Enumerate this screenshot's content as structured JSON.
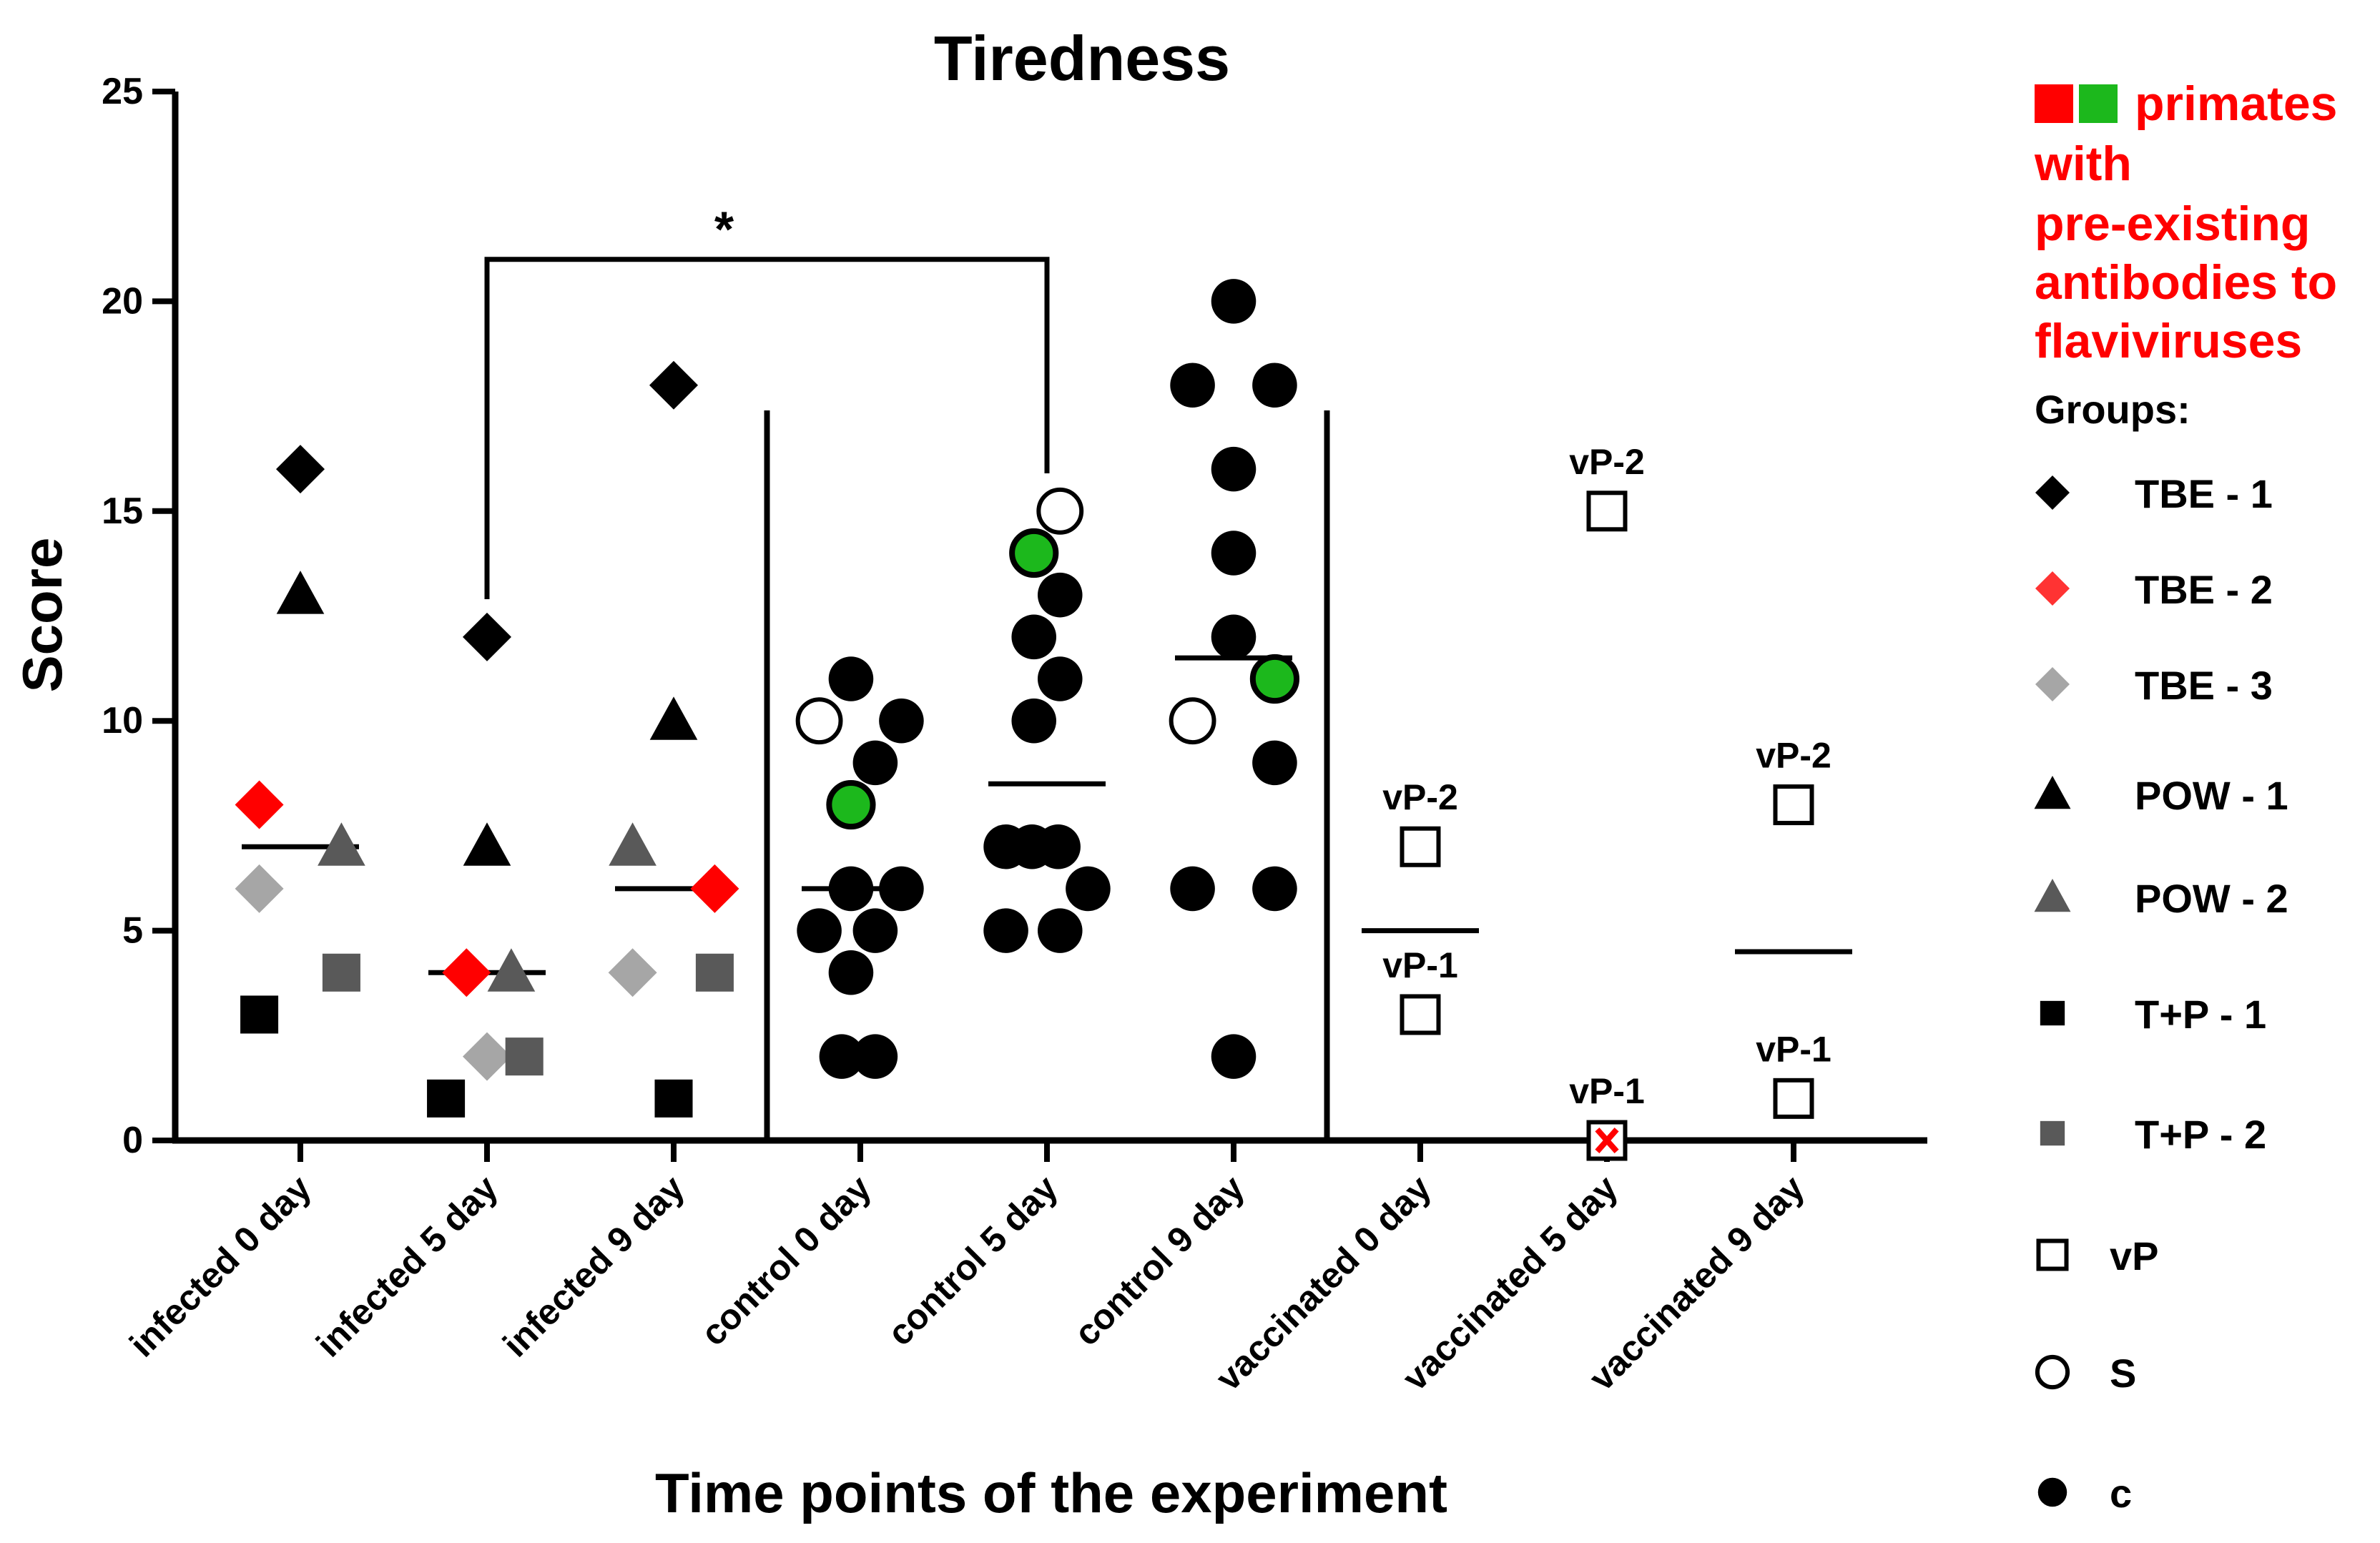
{
  "chart_data": {
    "type": "scatter",
    "title": "Tiredness",
    "ylabel": "Score",
    "xlabel": "Time points of the experiment",
    "ylim": [
      0,
      25
    ],
    "yticks": [
      0,
      5,
      10,
      15,
      20,
      25
    ],
    "categories": [
      "infected 0 day",
      "infected 5 day",
      "infected 9 day",
      "control 0 day",
      "control 5 day",
      "control 9 day",
      "vaccinated 0 day",
      "vaccinated 5 day",
      "vaccinated 9 day"
    ],
    "means": [
      {
        "cat": 0,
        "value": 7
      },
      {
        "cat": 1,
        "value": 4
      },
      {
        "cat": 2,
        "value": 6
      },
      {
        "cat": 3,
        "value": 6
      },
      {
        "cat": 4,
        "value": 8.5
      },
      {
        "cat": 5,
        "value": 11.5
      },
      {
        "cat": 6,
        "value": 5
      },
      {
        "cat": 8,
        "value": 4.5
      }
    ],
    "points": [
      {
        "cat": 0,
        "offset": 0,
        "value": 16,
        "shape": "diamond",
        "color": "#000000"
      },
      {
        "cat": 0,
        "offset": 0,
        "value": 13,
        "shape": "triangle",
        "color": "#000000"
      },
      {
        "cat": 0,
        "offset": -0.22,
        "value": 8,
        "shape": "diamond",
        "color": "#ff0000"
      },
      {
        "cat": 0,
        "offset": 0.22,
        "value": 7,
        "shape": "triangle",
        "color": "#595959"
      },
      {
        "cat": 0,
        "offset": -0.22,
        "value": 6,
        "shape": "diamond",
        "color": "#a6a6a6"
      },
      {
        "cat": 0,
        "offset": 0.22,
        "value": 4,
        "shape": "square",
        "color": "#595959"
      },
      {
        "cat": 0,
        "offset": -0.22,
        "value": 3,
        "shape": "square",
        "color": "#000000"
      },
      {
        "cat": 1,
        "offset": 0,
        "value": 12,
        "shape": "diamond",
        "color": "#000000"
      },
      {
        "cat": 1,
        "offset": 0,
        "value": 7,
        "shape": "triangle",
        "color": "#000000"
      },
      {
        "cat": 1,
        "offset": -0.11,
        "value": 4,
        "shape": "diamond",
        "color": "#ff0000"
      },
      {
        "cat": 1,
        "offset": 0.13,
        "value": 4,
        "shape": "triangle",
        "color": "#595959"
      },
      {
        "cat": 1,
        "offset": 0,
        "value": 2,
        "shape": "diamond",
        "color": "#a6a6a6"
      },
      {
        "cat": 1,
        "offset": 0.2,
        "value": 2,
        "shape": "square",
        "color": "#595959"
      },
      {
        "cat": 1,
        "offset": -0.22,
        "value": 1,
        "shape": "square",
        "color": "#000000"
      },
      {
        "cat": 2,
        "offset": 0,
        "value": 18,
        "shape": "diamond",
        "color": "#000000"
      },
      {
        "cat": 2,
        "offset": 0,
        "value": 10,
        "shape": "triangle",
        "color": "#000000"
      },
      {
        "cat": 2,
        "offset": -0.22,
        "value": 7,
        "shape": "triangle",
        "color": "#595959"
      },
      {
        "cat": 2,
        "offset": 0.22,
        "value": 6,
        "shape": "diamond",
        "color": "#ff0000"
      },
      {
        "cat": 2,
        "offset": -0.22,
        "value": 4,
        "shape": "diamond",
        "color": "#a6a6a6"
      },
      {
        "cat": 2,
        "offset": 0.22,
        "value": 4,
        "shape": "square",
        "color": "#595959"
      },
      {
        "cat": 2,
        "offset": 0,
        "value": 1,
        "shape": "square",
        "color": "#000000"
      },
      {
        "cat": 3,
        "offset": -0.05,
        "value": 11,
        "shape": "circle",
        "color": "#000000"
      },
      {
        "cat": 3,
        "offset": -0.22,
        "value": 10,
        "shape": "open-circle",
        "color": "#000000"
      },
      {
        "cat": 3,
        "offset": 0.22,
        "value": 10,
        "shape": "circle",
        "color": "#000000"
      },
      {
        "cat": 3,
        "offset": 0.08,
        "value": 9,
        "shape": "circle",
        "color": "#000000"
      },
      {
        "cat": 3,
        "offset": -0.05,
        "value": 8,
        "shape": "circle",
        "color": "#1cb81c"
      },
      {
        "cat": 3,
        "offset": -0.05,
        "value": 6,
        "shape": "circle",
        "color": "#000000"
      },
      {
        "cat": 3,
        "offset": 0.22,
        "value": 6,
        "shape": "circle",
        "color": "#000000"
      },
      {
        "cat": 3,
        "offset": -0.22,
        "value": 5,
        "shape": "circle",
        "color": "#000000"
      },
      {
        "cat": 3,
        "offset": 0.08,
        "value": 5,
        "shape": "circle",
        "color": "#000000"
      },
      {
        "cat": 3,
        "offset": -0.05,
        "value": 4,
        "shape": "circle",
        "color": "#000000"
      },
      {
        "cat": 3,
        "offset": -0.1,
        "value": 2,
        "shape": "circle",
        "color": "#000000"
      },
      {
        "cat": 3,
        "offset": 0.08,
        "value": 2,
        "shape": "circle",
        "color": "#000000"
      },
      {
        "cat": 4,
        "offset": 0.07,
        "value": 15,
        "shape": "open-circle",
        "color": "#000000"
      },
      {
        "cat": 4,
        "offset": -0.07,
        "value": 14,
        "shape": "circle",
        "color": "#1cb81c"
      },
      {
        "cat": 4,
        "offset": 0.07,
        "value": 13,
        "shape": "circle",
        "color": "#000000"
      },
      {
        "cat": 4,
        "offset": -0.07,
        "value": 12,
        "shape": "circle",
        "color": "#000000"
      },
      {
        "cat": 4,
        "offset": 0.07,
        "value": 11,
        "shape": "circle",
        "color": "#000000"
      },
      {
        "cat": 4,
        "offset": -0.07,
        "value": 10,
        "shape": "circle",
        "color": "#000000"
      },
      {
        "cat": 4,
        "offset": -0.22,
        "value": 7,
        "shape": "circle",
        "color": "#000000"
      },
      {
        "cat": 4,
        "offset": -0.08,
        "value": 7,
        "shape": "circle",
        "color": "#000000"
      },
      {
        "cat": 4,
        "offset": 0.06,
        "value": 7,
        "shape": "circle",
        "color": "#000000"
      },
      {
        "cat": 4,
        "offset": 0.22,
        "value": 6,
        "shape": "circle",
        "color": "#000000"
      },
      {
        "cat": 4,
        "offset": -0.22,
        "value": 5,
        "shape": "circle",
        "color": "#000000"
      },
      {
        "cat": 4,
        "offset": 0.07,
        "value": 5,
        "shape": "circle",
        "color": "#000000"
      },
      {
        "cat": 5,
        "offset": 0,
        "value": 20,
        "shape": "circle",
        "color": "#000000"
      },
      {
        "cat": 5,
        "offset": -0.22,
        "value": 18,
        "shape": "circle",
        "color": "#000000"
      },
      {
        "cat": 5,
        "offset": 0.22,
        "value": 18,
        "shape": "circle",
        "color": "#000000"
      },
      {
        "cat": 5,
        "offset": 0,
        "value": 16,
        "shape": "circle",
        "color": "#000000"
      },
      {
        "cat": 5,
        "offset": 0,
        "value": 14,
        "shape": "circle",
        "color": "#000000"
      },
      {
        "cat": 5,
        "offset": 0,
        "value": 12,
        "shape": "circle",
        "color": "#000000"
      },
      {
        "cat": 5,
        "offset": 0.22,
        "value": 11,
        "shape": "circle",
        "color": "#1cb81c"
      },
      {
        "cat": 5,
        "offset": -0.22,
        "value": 10,
        "shape": "open-circle",
        "color": "#000000"
      },
      {
        "cat": 5,
        "offset": 0.22,
        "value": 9,
        "shape": "circle",
        "color": "#000000"
      },
      {
        "cat": 5,
        "offset": -0.22,
        "value": 6,
        "shape": "circle",
        "color": "#000000"
      },
      {
        "cat": 5,
        "offset": 0.22,
        "value": 6,
        "shape": "circle",
        "color": "#000000"
      },
      {
        "cat": 5,
        "offset": 0,
        "value": 2,
        "shape": "circle",
        "color": "#000000"
      },
      {
        "cat": 6,
        "offset": 0,
        "value": 7,
        "shape": "open-square",
        "color": "#000000",
        "label": "vP-2",
        "label_pos": "above"
      },
      {
        "cat": 6,
        "offset": 0,
        "value": 3,
        "shape": "open-square",
        "color": "#000000",
        "label": "vP-1",
        "label_pos": "above"
      },
      {
        "cat": 7,
        "offset": 0,
        "value": 15,
        "shape": "open-square",
        "color": "#000000",
        "label": "vP-2",
        "label_pos": "above"
      },
      {
        "cat": 7,
        "offset": 0,
        "value": 0,
        "shape": "open-square-x",
        "color": "#000000",
        "label": "vP-1",
        "label_pos": "above"
      },
      {
        "cat": 8,
        "offset": 0,
        "value": 8,
        "shape": "open-square",
        "color": "#000000",
        "label": "vP-2",
        "label_pos": "above"
      },
      {
        "cat": 8,
        "offset": 0,
        "value": 1,
        "shape": "open-square",
        "color": "#000000",
        "label": "vP-1",
        "label_pos": "above"
      }
    ],
    "significance": {
      "from": 1,
      "to": 4,
      "level": 21,
      "from_value": 12.9,
      "to_value": 15.9,
      "label": "*"
    },
    "separators": [
      3,
      6
    ],
    "legend": {
      "position": "right",
      "note_squares": [
        "#ff0000",
        "#1cb81c"
      ],
      "note": "primates with pre-existing antibodies to flaviviruses",
      "note_lines": [
        "primates",
        "with",
        "pre-existing",
        "antibodies to",
        "flaviviruses"
      ],
      "heading": "Groups:",
      "entries": [
        {
          "label": "TBE - 1",
          "shape": "diamond",
          "color": "#000000"
        },
        {
          "label": "TBE - 2",
          "shape": "diamond",
          "color": "#ff3333"
        },
        {
          "label": "TBE - 3",
          "shape": "diamond",
          "color": "#a6a6a6"
        },
        {
          "label": "POW - 1",
          "shape": "triangle",
          "color": "#000000"
        },
        {
          "label": "POW - 2",
          "shape": "triangle",
          "color": "#595959"
        },
        {
          "label": "T+P - 1",
          "shape": "square",
          "color": "#000000"
        },
        {
          "label": "T+P - 2",
          "shape": "square",
          "color": "#595959"
        },
        {
          "label": "vP",
          "shape": "open-square",
          "color": "#000000"
        },
        {
          "label": "S",
          "shape": "open-circle",
          "color": "#000000"
        },
        {
          "label": "c",
          "shape": "circle",
          "color": "#000000"
        }
      ]
    }
  }
}
